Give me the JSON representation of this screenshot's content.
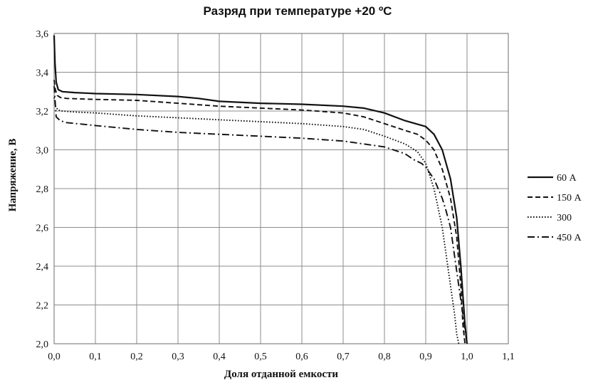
{
  "chart_data": {
    "type": "line",
    "title": "Разряд при температуре +20 ºС",
    "xlabel": "Доля отданной емкости",
    "ylabel": "Напряжение, В",
    "xlim": [
      0.0,
      1.1
    ],
    "ylim": [
      2.0,
      3.6
    ],
    "x_ticks": [
      "0,0",
      "0,1",
      "0,2",
      "0,3",
      "0,4",
      "0,5",
      "0,6",
      "0,7",
      "0,8",
      "0,9",
      "1,0",
      "1,1"
    ],
    "y_ticks": [
      "2,0",
      "2,2",
      "2,4",
      "2,6",
      "2,8",
      "3,0",
      "3,2",
      "3,4",
      "3,6"
    ],
    "grid": true,
    "legend_position": "right",
    "series": [
      {
        "name": "60 А",
        "style": "solid",
        "x": [
          0.0,
          0.002,
          0.005,
          0.01,
          0.02,
          0.05,
          0.1,
          0.2,
          0.3,
          0.35,
          0.4,
          0.5,
          0.6,
          0.7,
          0.75,
          0.8,
          0.85,
          0.9,
          0.92,
          0.94,
          0.96,
          0.975,
          0.985,
          0.99,
          0.995,
          1.0
        ],
        "y": [
          3.59,
          3.45,
          3.35,
          3.31,
          3.3,
          3.295,
          3.29,
          3.285,
          3.275,
          3.265,
          3.25,
          3.24,
          3.235,
          3.225,
          3.215,
          3.19,
          3.15,
          3.12,
          3.08,
          3.0,
          2.85,
          2.65,
          2.4,
          2.25,
          2.1,
          2.0
        ]
      },
      {
        "name": "150 А",
        "style": "dashed",
        "x": [
          0.0,
          0.003,
          0.008,
          0.015,
          0.03,
          0.1,
          0.2,
          0.3,
          0.4,
          0.5,
          0.6,
          0.7,
          0.75,
          0.8,
          0.85,
          0.88,
          0.9,
          0.92,
          0.94,
          0.96,
          0.975,
          0.985,
          0.99,
          0.995
        ],
        "y": [
          3.36,
          3.31,
          3.28,
          3.27,
          3.265,
          3.26,
          3.255,
          3.24,
          3.225,
          3.215,
          3.205,
          3.19,
          3.17,
          3.135,
          3.1,
          3.08,
          3.05,
          3.0,
          2.9,
          2.75,
          2.55,
          2.3,
          2.1,
          2.0
        ]
      },
      {
        "name": "300",
        "style": "dotted",
        "x": [
          0.0,
          0.004,
          0.01,
          0.02,
          0.05,
          0.1,
          0.2,
          0.3,
          0.4,
          0.5,
          0.6,
          0.7,
          0.75,
          0.8,
          0.85,
          0.88,
          0.9,
          0.92,
          0.94,
          0.95,
          0.96,
          0.97,
          0.975,
          0.98
        ],
        "y": [
          3.27,
          3.22,
          3.205,
          3.2,
          3.195,
          3.19,
          3.175,
          3.165,
          3.155,
          3.145,
          3.135,
          3.12,
          3.105,
          3.07,
          3.03,
          2.99,
          2.93,
          2.8,
          2.6,
          2.45,
          2.3,
          2.15,
          2.05,
          2.0
        ]
      },
      {
        "name": "450 А",
        "style": "dash-dot",
        "x": [
          0.0,
          0.005,
          0.01,
          0.015,
          0.03,
          0.1,
          0.2,
          0.3,
          0.4,
          0.5,
          0.6,
          0.7,
          0.8,
          0.85,
          0.87,
          0.89,
          0.9,
          0.92,
          0.94,
          0.95,
          0.96,
          0.97,
          0.98,
          0.99,
          1.0
        ],
        "y": [
          3.33,
          3.17,
          3.16,
          3.15,
          3.14,
          3.125,
          3.105,
          3.09,
          3.08,
          3.07,
          3.06,
          3.045,
          3.015,
          2.98,
          2.95,
          2.93,
          2.91,
          2.85,
          2.75,
          2.68,
          2.6,
          2.45,
          2.3,
          2.15,
          2.0
        ]
      }
    ]
  }
}
